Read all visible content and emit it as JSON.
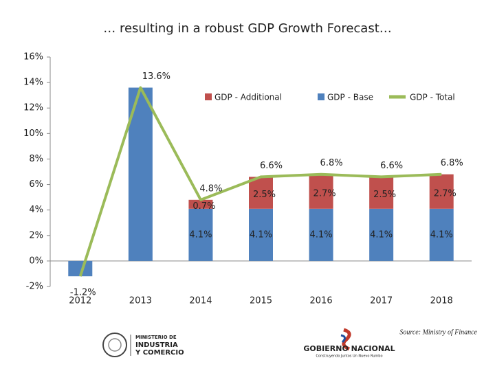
{
  "chart_data": {
    "type": "stacked_bar_line",
    "title": "… resulting in a robust GDP Growth Forecast…",
    "categories": [
      "2012",
      "2013",
      "2014",
      "2015",
      "2016",
      "2017",
      "2018"
    ],
    "series": [
      {
        "name": "GDP - Base",
        "color": "#4f81bd",
        "kind": "bar",
        "values": [
          -1.2,
          13.6,
          4.1,
          4.1,
          4.1,
          4.1,
          4.1
        ],
        "value_labels": [
          null,
          null,
          "4.1%",
          "4.1%",
          "4.1%",
          "4.1%",
          "4.1%"
        ]
      },
      {
        "name": "GDP - Additional",
        "color": "#c0504d",
        "kind": "bar",
        "values": [
          null,
          null,
          0.7,
          2.5,
          2.7,
          2.5,
          2.7
        ],
        "value_labels": [
          null,
          null,
          "0.7%",
          "2.5%",
          "2.7%",
          "2.5%",
          "2.7%"
        ]
      },
      {
        "name": "GDP - Total",
        "color": "#9bbb59",
        "kind": "line",
        "values": [
          -1.2,
          13.6,
          4.8,
          6.6,
          6.8,
          6.6,
          6.8
        ],
        "value_labels": [
          "-1.2%",
          "13.6%",
          "4.8%",
          "6.6%",
          "6.8%",
          "6.6%",
          "6.8%"
        ]
      }
    ],
    "ylim": [
      -2,
      16
    ],
    "yticks": [
      {
        "value": -2,
        "label": "-2%"
      },
      {
        "value": 0,
        "label": "0%"
      },
      {
        "value": 2,
        "label": "2%"
      },
      {
        "value": 4,
        "label": "4%"
      },
      {
        "value": 6,
        "label": "6%"
      },
      {
        "value": 8,
        "label": "8%"
      },
      {
        "value": 10,
        "label": "10%"
      },
      {
        "value": 12,
        "label": "12%"
      },
      {
        "value": 14,
        "label": "14%"
      },
      {
        "value": 16,
        "label": "16%"
      }
    ],
    "grid": false,
    "legend": "top-right",
    "source": "Source: Ministry of Finance",
    "logos": {
      "left": [
        "MINISTERIO DE",
        "INDUSTRIA",
        "Y COMERCIO"
      ],
      "right": [
        "GOBIERNO NACIONAL",
        "Construyendo Juntos Un Nuevo Rumbo"
      ]
    }
  }
}
